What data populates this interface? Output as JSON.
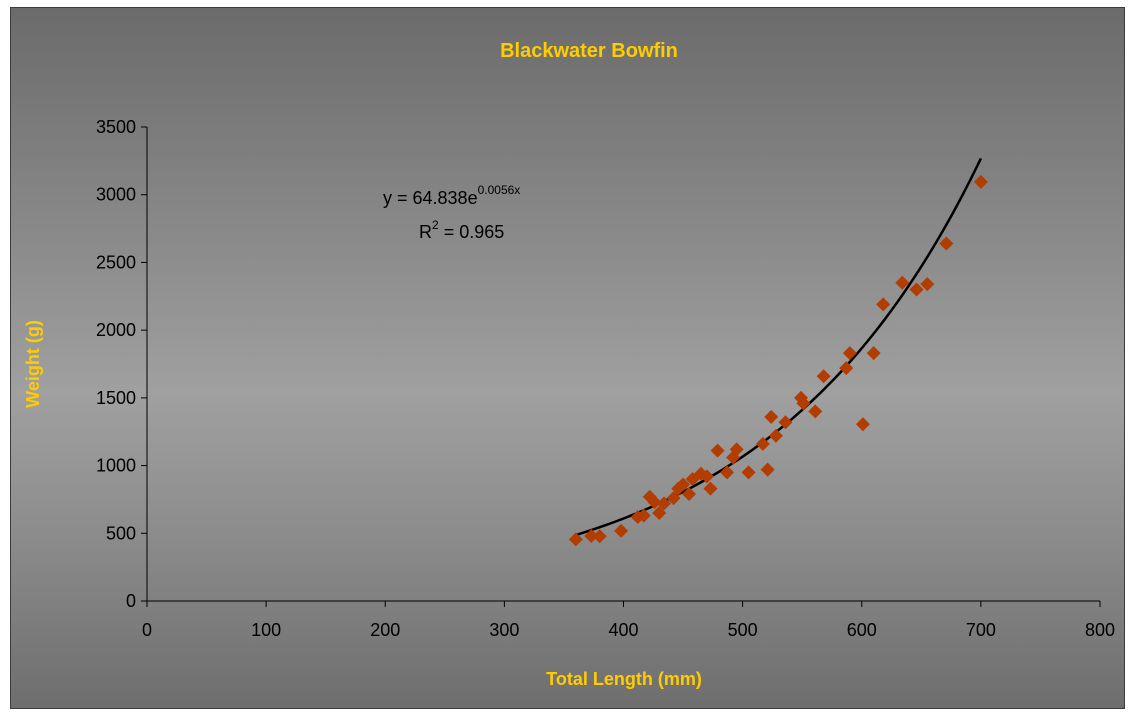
{
  "chart_data": {
    "type": "scatter",
    "title": "Blackwater Bowfin",
    "xlabel": "Total Length (mm)",
    "ylabel": "Weight (g)",
    "xlim": [
      0,
      800
    ],
    "ylim": [
      0,
      3500
    ],
    "xticks": [
      "0",
      "100",
      "200",
      "300",
      "400",
      "500",
      "600",
      "700",
      "800"
    ],
    "yticks": [
      "0",
      "500",
      "1000",
      "1500",
      "2000",
      "2500",
      "3000",
      "3500"
    ],
    "grid": false,
    "marker_color": "#b33c00",
    "trendline": {
      "type": "exponential",
      "a": 64.838,
      "b": 0.0056,
      "x_range": [
        360,
        700
      ],
      "color": "#000000",
      "equation_main": "y = 64.838e",
      "equation_exp": "0.0056x",
      "r2_prefix": "R",
      "r2_sup": "2",
      "r2_value": " = 0.965"
    },
    "points": [
      {
        "x": 360,
        "y": 455
      },
      {
        "x": 373,
        "y": 480
      },
      {
        "x": 380,
        "y": 478
      },
      {
        "x": 398,
        "y": 518
      },
      {
        "x": 412,
        "y": 620
      },
      {
        "x": 417,
        "y": 630
      },
      {
        "x": 422,
        "y": 770
      },
      {
        "x": 426,
        "y": 730
      },
      {
        "x": 430,
        "y": 650
      },
      {
        "x": 434,
        "y": 720
      },
      {
        "x": 442,
        "y": 760
      },
      {
        "x": 446,
        "y": 830
      },
      {
        "x": 450,
        "y": 860
      },
      {
        "x": 455,
        "y": 790
      },
      {
        "x": 458,
        "y": 900
      },
      {
        "x": 465,
        "y": 940
      },
      {
        "x": 470,
        "y": 920
      },
      {
        "x": 473,
        "y": 830
      },
      {
        "x": 479,
        "y": 1110
      },
      {
        "x": 487,
        "y": 950
      },
      {
        "x": 492,
        "y": 1060
      },
      {
        "x": 495,
        "y": 1120
      },
      {
        "x": 505,
        "y": 950
      },
      {
        "x": 517,
        "y": 1160
      },
      {
        "x": 521,
        "y": 970
      },
      {
        "x": 524,
        "y": 1360
      },
      {
        "x": 528,
        "y": 1220
      },
      {
        "x": 536,
        "y": 1320
      },
      {
        "x": 549,
        "y": 1500
      },
      {
        "x": 551,
        "y": 1460
      },
      {
        "x": 561,
        "y": 1400
      },
      {
        "x": 568,
        "y": 1660
      },
      {
        "x": 587,
        "y": 1720
      },
      {
        "x": 590,
        "y": 1830
      },
      {
        "x": 601,
        "y": 1305
      },
      {
        "x": 610,
        "y": 1830
      },
      {
        "x": 618,
        "y": 2190
      },
      {
        "x": 634,
        "y": 2350
      },
      {
        "x": 646,
        "y": 2300
      },
      {
        "x": 655,
        "y": 2340
      },
      {
        "x": 671,
        "y": 2640
      },
      {
        "x": 700,
        "y": 3095
      }
    ]
  }
}
